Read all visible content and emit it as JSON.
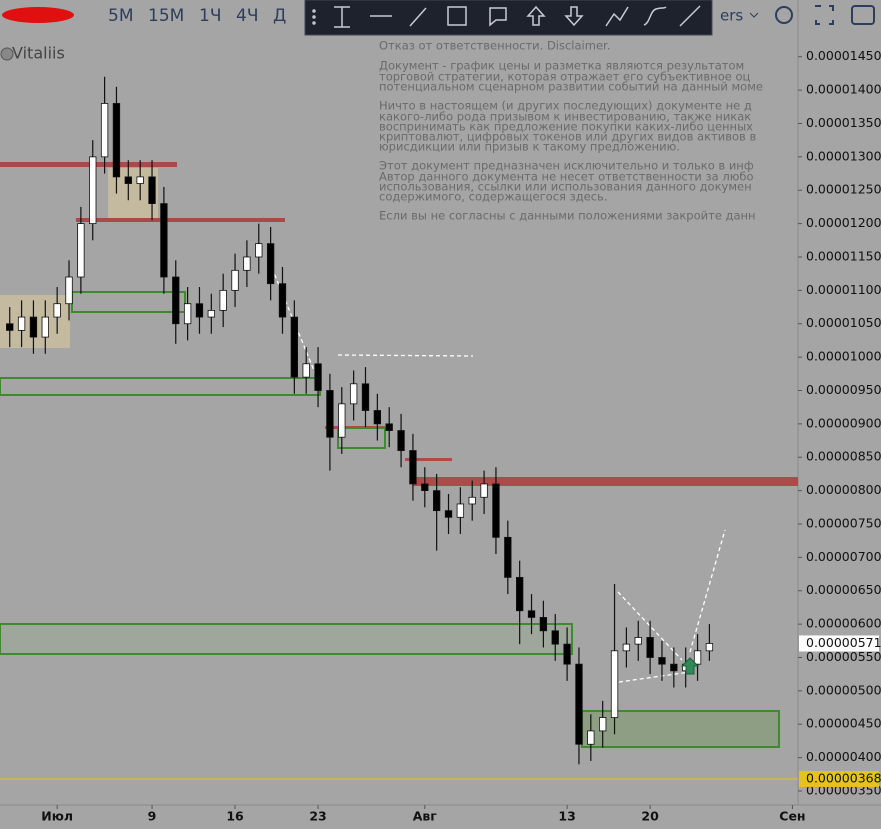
{
  "toolbar": {
    "timeframes": [
      "5M",
      "15M",
      "1Ч",
      "4Ч",
      "Д"
    ],
    "symbol_tail": "ers"
  },
  "chart_data": {
    "type": "candlestick",
    "author": "Vitaliis",
    "disclaimer": [
      "Отказ от ответственности. Disclaimer.",
      "Документ - график цены и разметка являются результатом",
      "торговой стратегии, которая отражает его субъективное оц",
      "потенциальном сценарном развитии событий на данный моме",
      "Ничто в настоящем (и других последующих) документе не д",
      "какого-либо рода призывом к инвестированию, также никак",
      "воспринимать как предложение покупки каких-либо ценных",
      "криптовалют, цифровых токенов или других видов активов в",
      "юрисдикции или призыв к такому предложению.",
      "Этот документ предназначен исключительно и только в инф",
      "Автор данного документа не несет ответственности за любо",
      "использования, ссылки или использования данного докумен",
      "содержимого, содержащегося здесь.",
      "Если вы не согласны с данными положениями закройте данн"
    ],
    "x": [
      -3,
      -2,
      -1,
      0,
      1,
      2,
      3,
      4,
      5,
      6,
      7,
      8,
      9,
      10,
      11,
      12,
      13,
      14,
      15,
      16,
      17,
      18,
      19,
      20,
      21,
      22,
      23,
      24,
      25,
      26,
      27,
      28,
      29,
      30,
      31,
      32,
      33,
      34,
      35,
      36,
      37,
      38,
      39,
      40,
      41,
      42,
      43,
      44,
      45,
      46,
      47,
      48,
      49,
      50,
      51,
      52,
      53,
      54,
      55,
      56
    ],
    "open": [
      1.05e-05,
      1.04e-05,
      1.06e-05,
      1.03e-05,
      1.06e-05,
      1.08e-05,
      1.12e-05,
      1.2e-05,
      1.3e-05,
      1.38e-05,
      1.27e-05,
      1.26e-05,
      1.27e-05,
      1.23e-05,
      1.12e-05,
      1.05e-05,
      1.08e-05,
      1.06e-05,
      1.07e-05,
      1.1e-05,
      1.13e-05,
      1.15e-05,
      1.17e-05,
      1.11e-05,
      1.06e-05,
      9.7e-06,
      9.9e-06,
      9.5e-06,
      8.8e-06,
      9.3e-06,
      9.6e-06,
      9.2e-06,
      9e-06,
      8.9e-06,
      8.6e-06,
      8.1e-06,
      8e-06,
      7.7e-06,
      7.6e-06,
      7.8e-06,
      7.9e-06,
      8.1e-06,
      7.3e-06,
      6.7e-06,
      6.2e-06,
      6.1e-06,
      5.9e-06,
      5.7e-06,
      5.4e-06,
      4.2e-06,
      4.4e-06,
      4.6e-06,
      5.6e-06,
      5.7e-06,
      5.8e-06,
      5.5e-06,
      5.4e-06,
      5.3e-06,
      5.4e-06,
      5.6e-06
    ],
    "high": [
      1.075e-05,
      1.085e-05,
      1.085e-05,
      1.085e-05,
      1.105e-05,
      1.145e-05,
      1.225e-05,
      1.325e-05,
      1.42e-05,
      1.405e-05,
      1.295e-05,
      1.295e-05,
      1.295e-05,
      1.255e-05,
      1.145e-05,
      1.105e-05,
      1.105e-05,
      1.095e-05,
      1.125e-05,
      1.155e-05,
      1.175e-05,
      1.2e-05,
      1.195e-05,
      1.135e-05,
      1.085e-05,
      1.015e-05,
      1.015e-05,
      9.75e-06,
      9.55e-06,
      9.8e-06,
      9.85e-06,
      9.45e-06,
      9.25e-06,
      9.15e-06,
      8.85e-06,
      8.35e-06,
      8.25e-06,
      7.95e-06,
      8.05e-06,
      8.15e-06,
      8.3e-06,
      8.35e-06,
      7.55e-06,
      6.95e-06,
      6.45e-06,
      6.35e-06,
      6.15e-06,
      5.95e-06,
      5.65e-06,
      4.65e-06,
      4.85e-06,
      6.6e-06,
      5.95e-06,
      6.05e-06,
      6.05e-06,
      5.75e-06,
      5.65e-06,
      5.65e-06,
      5.85e-06,
      6e-06
    ],
    "low": [
      1.015e-05,
      1.015e-05,
      1.005e-05,
      1.005e-05,
      1.035e-05,
      1.055e-05,
      1.095e-05,
      1.175e-05,
      1.275e-05,
      1.245e-05,
      1.235e-05,
      1.235e-05,
      1.205e-05,
      1.095e-05,
      1.02e-05,
      1.025e-05,
      1.035e-05,
      1.035e-05,
      1.045e-05,
      1.075e-05,
      1.105e-05,
      1.125e-05,
      1.085e-05,
      1.035e-05,
      9.45e-06,
      9.45e-06,
      9.25e-06,
      8.3e-06,
      8.55e-06,
      9.05e-06,
      8.95e-06,
      8.75e-06,
      8.65e-06,
      8.35e-06,
      7.85e-06,
      7.75e-06,
      7.1e-06,
      7.35e-06,
      7.35e-06,
      7.55e-06,
      7.65e-06,
      7.05e-06,
      6.45e-06,
      5.7e-06,
      5.85e-06,
      5.65e-06,
      5.45e-06,
      5.15e-06,
      3.9e-06,
      3.95e-06,
      4.15e-06,
      4.35e-06,
      5.35e-06,
      5.45e-06,
      5.25e-06,
      5.15e-06,
      5.05e-06,
      5.05e-06,
      5.15e-06,
      5.45e-06
    ],
    "close": [
      1.04e-05,
      1.06e-05,
      1.03e-05,
      1.06e-05,
      1.08e-05,
      1.12e-05,
      1.2e-05,
      1.3e-05,
      1.38e-05,
      1.27e-05,
      1.26e-05,
      1.27e-05,
      1.23e-05,
      1.12e-05,
      1.05e-05,
      1.08e-05,
      1.06e-05,
      1.07e-05,
      1.1e-05,
      1.13e-05,
      1.15e-05,
      1.17e-05,
      1.11e-05,
      1.06e-05,
      9.7e-06,
      9.9e-06,
      9.5e-06,
      8.8e-06,
      9.3e-06,
      9.6e-06,
      9.2e-06,
      9e-06,
      8.9e-06,
      8.6e-06,
      8.1e-06,
      8e-06,
      7.7e-06,
      7.6e-06,
      7.8e-06,
      7.9e-06,
      8.1e-06,
      7.3e-06,
      6.7e-06,
      6.2e-06,
      6.1e-06,
      5.9e-06,
      5.7e-06,
      5.4e-06,
      4.2e-06,
      4.4e-06,
      4.6e-06,
      5.6e-06,
      5.7e-06,
      5.8e-06,
      5.5e-06,
      5.4e-06,
      5.3e-06,
      5.4e-06,
      5.6e-06,
      5.71e-06
    ],
    "up_color": "#ffffff",
    "down_color": "#000000",
    "xlim": [
      -3.82,
      63.47
    ],
    "xticks": [
      {
        "value": 1,
        "label": "Июл"
      },
      9,
      16,
      23,
      {
        "value": 32,
        "label": "Авг"
      },
      {
        "value": 44,
        "label": "13"
      },
      {
        "value": 51,
        "label": "20"
      },
      {
        "value": 63,
        "label": "Сен"
      }
    ],
    "ylim": [
      3.29e-06,
      1.535e-05
    ],
    "yticks": [
      {
        "value": 1.45e-05,
        "label": "0.00001450"
      },
      {
        "value": 1.4e-05,
        "label": "0.00001400"
      },
      {
        "value": 1.35e-05,
        "label": "0.00001350"
      },
      {
        "value": 1.3e-05,
        "label": "0.00001300"
      },
      {
        "value": 1.25e-05,
        "label": "0.00001250"
      },
      {
        "value": 1.2e-05,
        "label": "0.00001200"
      },
      {
        "value": 1.15e-05,
        "label": "0.00001150"
      },
      {
        "value": 1.1e-05,
        "label": "0.00001100"
      },
      {
        "value": 1.05e-05,
        "label": "0.00001050"
      },
      {
        "value": 1e-05,
        "label": "0.00001000"
      },
      {
        "value": 9.5e-06,
        "label": "0.00000950"
      },
      {
        "value": 9e-06,
        "label": "0.00000900"
      },
      {
        "value": 8.5e-06,
        "label": "0.00000850"
      },
      {
        "value": 8e-06,
        "label": "0.00000800"
      },
      {
        "value": 7.5e-06,
        "label": "0.00000750"
      },
      {
        "value": 7e-06,
        "label": "0.00000700"
      },
      {
        "value": 6.5e-06,
        "label": "0.00000650"
      },
      {
        "value": 6e-06,
        "label": "0.00000600"
      },
      {
        "value": 5.5e-06,
        "label": "0.00000550"
      },
      {
        "value": 5e-06,
        "label": "0.00000500"
      },
      {
        "value": 4.5e-06,
        "label": "0.00000450"
      },
      {
        "value": 4e-06,
        "label": "0.00000400"
      },
      {
        "value": 3.5e-06,
        "label": "0.00000350"
      }
    ],
    "grid": false,
    "last_price": {
      "value": 5.71e-06,
      "label": "0.00000571"
    },
    "level": {
      "value": 3.68e-06,
      "label": "0.00000368",
      "color": "#e8c21a"
    }
  }
}
